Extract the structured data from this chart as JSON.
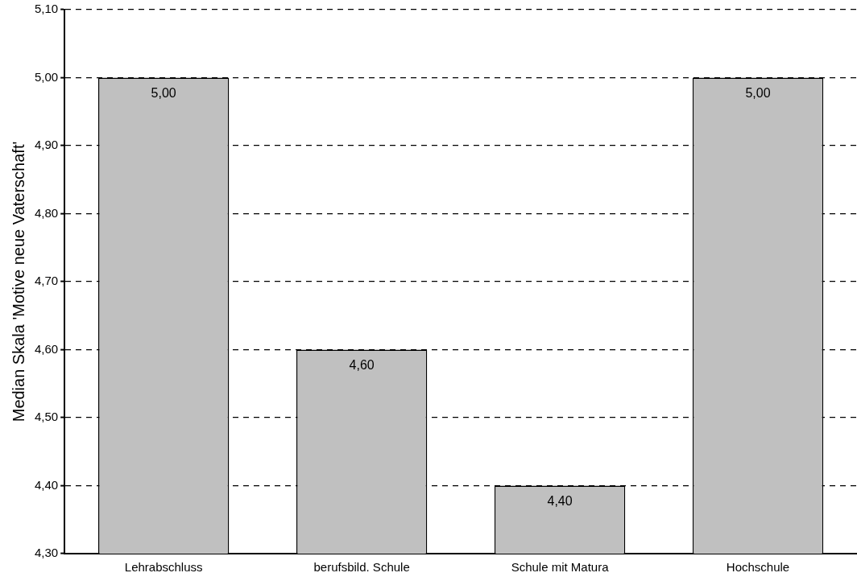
{
  "chart_data": {
    "type": "bar",
    "ylabel": "Median Skala 'Motive neue Vaterschaft'",
    "categories": [
      "Lehrabschluss",
      "berufsbild. Schule",
      "Schule mit Matura",
      "Hochschule"
    ],
    "values": [
      5.0,
      4.6,
      4.4,
      5.0
    ],
    "value_labels": [
      "5,00",
      "4,60",
      "4,40",
      "5,00"
    ],
    "color": "#c0c0c0",
    "ylim": [
      4.3,
      5.1
    ],
    "yticks": [
      {
        "value": 4.3,
        "label": "4,30"
      },
      {
        "value": 4.4,
        "label": "4,40"
      },
      {
        "value": 4.5,
        "label": "4,50"
      },
      {
        "value": 4.6,
        "label": "4,60"
      },
      {
        "value": 4.7,
        "label": "4,70"
      },
      {
        "value": 4.8,
        "label": "4,80"
      },
      {
        "value": 4.9,
        "label": "4,90"
      },
      {
        "value": 5.0,
        "label": "5,00"
      },
      {
        "value": 5.1,
        "label": "5,10"
      }
    ],
    "grid": "y",
    "legend": false
  }
}
